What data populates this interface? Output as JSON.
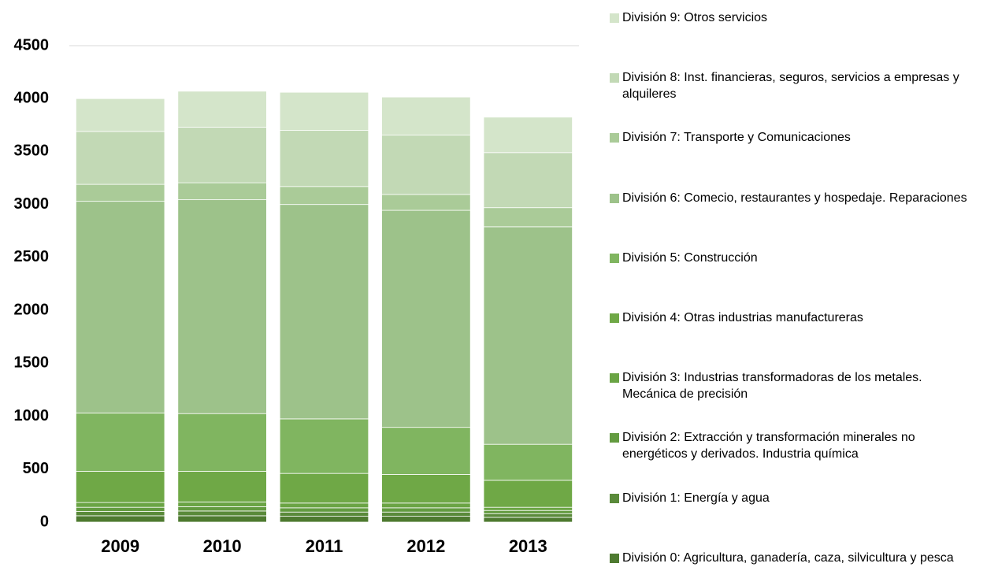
{
  "chart_data": {
    "type": "stacked_bar",
    "categories": [
      "2009",
      "2010",
      "2011",
      "2012",
      "2013"
    ],
    "series": [
      {
        "name": "División 0: Agricultura, ganadería, caza, silvicultura y pesca",
        "color": "#4e7a30",
        "values": [
          60,
          60,
          55,
          55,
          45
        ]
      },
      {
        "name": "División 1: Energía y agua",
        "color": "#5a8a3a",
        "values": [
          40,
          45,
          40,
          40,
          35
        ]
      },
      {
        "name": "División 2: Extracción y transformación minerales no energéticos y derivados. Industria química",
        "color": "#639b40",
        "values": [
          40,
          40,
          40,
          40,
          30
        ]
      },
      {
        "name": "División 3: Industrias transformadoras de los metales. Mecánica de precisión",
        "color": "#6aa444",
        "values": [
          45,
          45,
          45,
          45,
          30
        ]
      },
      {
        "name": "División 4: Otras industrias manufactureras",
        "color": "#6fa846",
        "values": [
          295,
          290,
          280,
          270,
          255
        ]
      },
      {
        "name": "División 5: Construcción",
        "color": "#80b560",
        "values": [
          550,
          545,
          515,
          445,
          340
        ]
      },
      {
        "name": "División 6: Comecio, restaurantes y hospedaje. Reparaciones",
        "color": "#9dc28a",
        "values": [
          2000,
          2020,
          2025,
          2050,
          2055
        ]
      },
      {
        "name": "División 7: Transporte y Comunicaciones",
        "color": "#aacb98",
        "values": [
          160,
          160,
          170,
          150,
          180
        ]
      },
      {
        "name": "División 8: Inst. financieras, seguros, servicios a empresas y alquileres",
        "color": "#c2d9b5",
        "values": [
          500,
          525,
          530,
          560,
          520
        ]
      },
      {
        "name": "División 9: Otros servicios",
        "color": "#d4e5ca",
        "values": [
          310,
          340,
          360,
          360,
          335
        ]
      }
    ],
    "ylim": [
      0,
      4500
    ],
    "yticks": [
      0,
      500,
      1000,
      1500,
      2000,
      2500,
      3000,
      3500,
      4000,
      4500
    ],
    "grid": false,
    "legend": "right"
  }
}
